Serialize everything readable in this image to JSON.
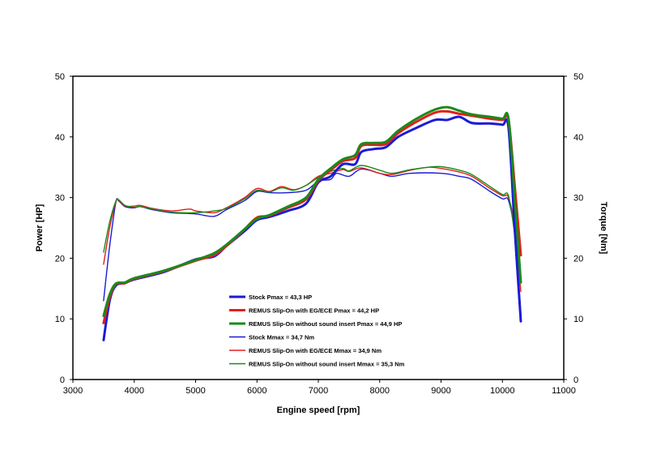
{
  "chart_data": {
    "type": "line",
    "xlabel": "Engine speed [rpm]",
    "ylabel_left": "Power [HP]",
    "ylabel_right": "Torque [Nm]",
    "xlim": [
      3000,
      11000
    ],
    "ylim": [
      0,
      50
    ],
    "ylim_right": [
      0,
      50
    ],
    "x_ticks": [
      "3000",
      "4000",
      "5000",
      "6000",
      "7000",
      "8000",
      "9000",
      "10000",
      "11000"
    ],
    "y_ticks": [
      "0",
      "10",
      "20",
      "30",
      "40",
      "50"
    ],
    "y_ticks_right": [
      "0",
      "10",
      "20",
      "30",
      "40",
      "50"
    ],
    "grid": false,
    "legend_position": "lower-center inside plot",
    "series": [
      {
        "name": "Stock Pmax = 43,3 HP",
        "color": "#1b1bd6",
        "style": "thick",
        "points": [
          [
            3500,
            6.5
          ],
          [
            3600,
            13
          ],
          [
            3700,
            15.5
          ],
          [
            3850,
            15.9
          ],
          [
            4000,
            16.5
          ],
          [
            4500,
            17.8
          ],
          [
            5000,
            19.8
          ],
          [
            5300,
            20.3
          ],
          [
            5500,
            22
          ],
          [
            5800,
            24.5
          ],
          [
            6000,
            26.3
          ],
          [
            6200,
            26.8
          ],
          [
            6500,
            27.8
          ],
          [
            6800,
            29
          ],
          [
            7000,
            32.5
          ],
          [
            7200,
            33.5
          ],
          [
            7400,
            35.5
          ],
          [
            7600,
            35.5
          ],
          [
            7700,
            37.5
          ],
          [
            7900,
            38
          ],
          [
            8100,
            38.3
          ],
          [
            8300,
            40
          ],
          [
            8600,
            41.5
          ],
          [
            8900,
            42.8
          ],
          [
            9100,
            42.8
          ],
          [
            9300,
            43.3
          ],
          [
            9500,
            42.3
          ],
          [
            9800,
            42.2
          ],
          [
            10000,
            42
          ],
          [
            10100,
            41.5
          ],
          [
            10200,
            25
          ],
          [
            10300,
            9.6
          ]
        ]
      },
      {
        "name": "REMUS Slip-On with EG/ECE Pmax =  44,2 HP",
        "color": "#e0201b",
        "style": "thick",
        "points": [
          [
            3500,
            9.3
          ],
          [
            3600,
            13.5
          ],
          [
            3700,
            15.7
          ],
          [
            3850,
            15.9
          ],
          [
            4000,
            16.6
          ],
          [
            4500,
            17.9
          ],
          [
            5000,
            19.6
          ],
          [
            5300,
            20.5
          ],
          [
            5500,
            22
          ],
          [
            5800,
            24.8
          ],
          [
            6000,
            26.7
          ],
          [
            6200,
            27
          ],
          [
            6500,
            28.3
          ],
          [
            6800,
            29.7
          ],
          [
            7000,
            32.8
          ],
          [
            7200,
            34.5
          ],
          [
            7400,
            36
          ],
          [
            7600,
            36.5
          ],
          [
            7700,
            38.5
          ],
          [
            7900,
            38.7
          ],
          [
            8100,
            38.8
          ],
          [
            8300,
            40.6
          ],
          [
            8600,
            42.5
          ],
          [
            8900,
            44
          ],
          [
            9100,
            44.2
          ],
          [
            9300,
            43.8
          ],
          [
            9500,
            43.5
          ],
          [
            9800,
            43
          ],
          [
            10000,
            42.8
          ],
          [
            10100,
            42.8
          ],
          [
            10200,
            32
          ],
          [
            10300,
            20.5
          ]
        ]
      },
      {
        "name": "REMUS Slip-On without sound insert Pmax = 44,9 HP",
        "color": "#1b8a1b",
        "style": "thick",
        "points": [
          [
            3500,
            10.5
          ],
          [
            3600,
            14
          ],
          [
            3700,
            15.8
          ],
          [
            3850,
            16
          ],
          [
            4000,
            16.7
          ],
          [
            4500,
            18
          ],
          [
            5000,
            19.7
          ],
          [
            5300,
            20.8
          ],
          [
            5500,
            22.2
          ],
          [
            5800,
            24.8
          ],
          [
            6000,
            26.5
          ],
          [
            6200,
            27.1
          ],
          [
            6500,
            28.5
          ],
          [
            6800,
            30
          ],
          [
            7000,
            33
          ],
          [
            7200,
            34.8
          ],
          [
            7400,
            36.3
          ],
          [
            7600,
            37
          ],
          [
            7700,
            38.8
          ],
          [
            7900,
            39
          ],
          [
            8100,
            39.2
          ],
          [
            8300,
            41
          ],
          [
            8600,
            43
          ],
          [
            8900,
            44.5
          ],
          [
            9100,
            44.9
          ],
          [
            9300,
            44.3
          ],
          [
            9500,
            43.7
          ],
          [
            9800,
            43.3
          ],
          [
            10000,
            43
          ],
          [
            10100,
            43
          ],
          [
            10200,
            30
          ],
          [
            10300,
            16
          ]
        ]
      },
      {
        "name": "Stock Mmax = 34,7 Nm",
        "color": "#1b1bd6",
        "style": "thin",
        "points": [
          [
            3500,
            13
          ],
          [
            3600,
            22
          ],
          [
            3700,
            29.2
          ],
          [
            3750,
            29.4
          ],
          [
            3850,
            28.5
          ],
          [
            4000,
            28.3
          ],
          [
            4100,
            28.5
          ],
          [
            4300,
            28
          ],
          [
            4600,
            27.5
          ],
          [
            5000,
            27.3
          ],
          [
            5300,
            26.9
          ],
          [
            5500,
            28
          ],
          [
            5800,
            29.5
          ],
          [
            6000,
            31
          ],
          [
            6200,
            30.8
          ],
          [
            6500,
            30.8
          ],
          [
            6800,
            31.2
          ],
          [
            7000,
            32.7
          ],
          [
            7200,
            33
          ],
          [
            7300,
            34
          ],
          [
            7500,
            33.5
          ],
          [
            7700,
            34.7
          ],
          [
            8000,
            34
          ],
          [
            8200,
            33.5
          ],
          [
            8500,
            34
          ],
          [
            9000,
            34
          ],
          [
            9300,
            33.5
          ],
          [
            9500,
            33
          ],
          [
            9800,
            31
          ],
          [
            10000,
            29.8
          ],
          [
            10100,
            29.5
          ],
          [
            10200,
            24
          ],
          [
            10300,
            11
          ]
        ]
      },
      {
        "name": "REMUS Slip-On with EG/ECE Mmax = 34,9 Nm",
        "color": "#e0201b",
        "style": "thin",
        "points": [
          [
            3500,
            19
          ],
          [
            3600,
            25
          ],
          [
            3700,
            29.3
          ],
          [
            3750,
            29.5
          ],
          [
            3850,
            28.6
          ],
          [
            4000,
            28.6
          ],
          [
            4100,
            28.7
          ],
          [
            4300,
            28.2
          ],
          [
            4600,
            27.8
          ],
          [
            4900,
            28.1
          ],
          [
            5000,
            27.8
          ],
          [
            5300,
            27.5
          ],
          [
            5500,
            28.3
          ],
          [
            5800,
            30
          ],
          [
            6000,
            31.5
          ],
          [
            6200,
            31
          ],
          [
            6400,
            31.8
          ],
          [
            6600,
            31.3
          ],
          [
            6800,
            32
          ],
          [
            7000,
            33.5
          ],
          [
            7200,
            34
          ],
          [
            7400,
            34.6
          ],
          [
            7500,
            34.3
          ],
          [
            7700,
            34.9
          ],
          [
            8000,
            34
          ],
          [
            8200,
            33.8
          ],
          [
            8500,
            34.5
          ],
          [
            8800,
            35
          ],
          [
            9000,
            34.8
          ],
          [
            9300,
            34.2
          ],
          [
            9500,
            33.5
          ],
          [
            9800,
            31.5
          ],
          [
            10000,
            30.3
          ],
          [
            10100,
            30
          ],
          [
            10200,
            25
          ],
          [
            10300,
            14.5
          ]
        ]
      },
      {
        "name": "REMUS Slip-On without sound insert Mmax = 35,3 Nm",
        "color": "#1b8a1b",
        "style": "thin",
        "points": [
          [
            3500,
            21
          ],
          [
            3600,
            26
          ],
          [
            3700,
            29.4
          ],
          [
            3750,
            29.6
          ],
          [
            3850,
            28.7
          ],
          [
            4000,
            28.4
          ],
          [
            4100,
            28.5
          ],
          [
            4300,
            28.1
          ],
          [
            4600,
            27.6
          ],
          [
            5000,
            27.5
          ],
          [
            5300,
            27.8
          ],
          [
            5500,
            28.2
          ],
          [
            5800,
            29.8
          ],
          [
            6000,
            31.2
          ],
          [
            6200,
            30.9
          ],
          [
            6400,
            31.6
          ],
          [
            6600,
            31.2
          ],
          [
            6800,
            32
          ],
          [
            7000,
            33.3
          ],
          [
            7200,
            34.3
          ],
          [
            7400,
            34.8
          ],
          [
            7500,
            34.4
          ],
          [
            7700,
            35.3
          ],
          [
            8000,
            34.5
          ],
          [
            8200,
            34
          ],
          [
            8500,
            34.6
          ],
          [
            8800,
            35
          ],
          [
            9000,
            35.1
          ],
          [
            9300,
            34.5
          ],
          [
            9500,
            33.8
          ],
          [
            9800,
            31.8
          ],
          [
            10000,
            30.5
          ],
          [
            10100,
            30.3
          ],
          [
            10200,
            24
          ],
          [
            10300,
            16
          ]
        ]
      }
    ]
  }
}
